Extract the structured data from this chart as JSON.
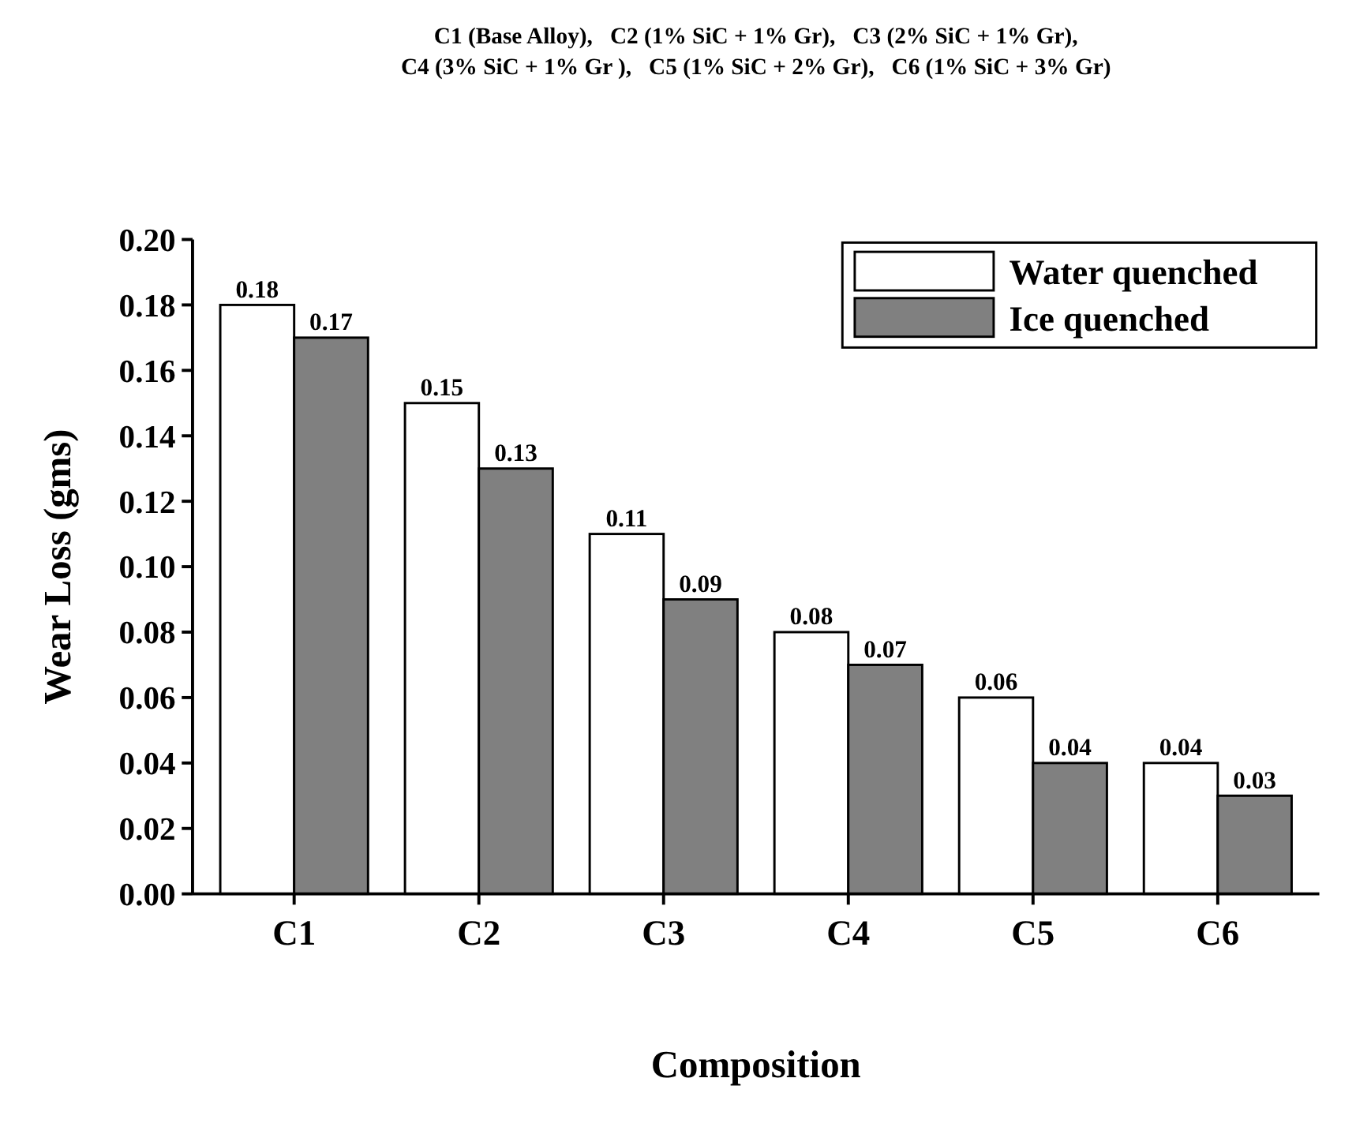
{
  "chart_data": {
    "type": "bar",
    "title": "C1 (Base Alloy),   C2 (1% SiC + 1% Gr),   C3 (2% SiC + 1% Gr),\nC4 (3% SiC + 1% Gr ),   C5 (1% SiC + 2% Gr),   C6 (1% SiC + 3% Gr)",
    "xlabel": "Composition",
    "ylabel": "Wear Loss (gms)",
    "categories": [
      "C1",
      "C2",
      "C3",
      "C4",
      "C5",
      "C6"
    ],
    "series": [
      {
        "name": "Water quenched",
        "color": "#ffffff",
        "values": [
          0.18,
          0.15,
          0.11,
          0.08,
          0.06,
          0.04
        ]
      },
      {
        "name": "Ice quenched",
        "color": "#808080",
        "values": [
          0.17,
          0.13,
          0.09,
          0.07,
          0.04,
          0.03
        ]
      }
    ],
    "ylim": [
      0,
      0.2
    ],
    "yticks": [
      {
        "value": 0,
        "label": "0.00"
      },
      {
        "value": 0.02,
        "label": "0.02"
      },
      {
        "value": 0.04,
        "label": "0.04"
      },
      {
        "value": 0.06,
        "label": "0.06"
      },
      {
        "value": 0.08,
        "label": "0.08"
      },
      {
        "value": 0.1,
        "label": "0.10"
      },
      {
        "value": 0.12,
        "label": "0.12"
      },
      {
        "value": 0.14,
        "label": "0.14"
      },
      {
        "value": 0.16,
        "label": "0.16"
      },
      {
        "value": 0.18,
        "label": "0.18"
      },
      {
        "value": 0.2,
        "label": "0.20"
      }
    ],
    "data_labels": true,
    "grid": false,
    "legend": "top right"
  }
}
